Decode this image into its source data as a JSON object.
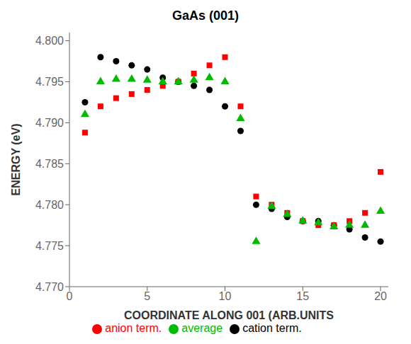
{
  "chart_data": {
    "type": "scatter",
    "title": "GaAs (001)",
    "x_label": "COORDINATE ALONG 001 (ARB.UNITS",
    "y_label": "ENERGY (eV)",
    "xlim": [
      0,
      20.5
    ],
    "ylim": [
      4.77,
      4.801
    ],
    "xticks": [
      0,
      5,
      10,
      15,
      20
    ],
    "yticks": [
      {
        "value": 4.77,
        "label": "4.770"
      },
      4.775,
      {
        "value": 4.78,
        "label": "4.780"
      },
      4.785,
      {
        "value": 4.79,
        "label": "4.790"
      },
      4.795,
      {
        "value": 4.8,
        "label": "4.800"
      }
    ],
    "grid": false,
    "legend": "bottom",
    "series": [
      {
        "name": "cation term.",
        "color": "#000000",
        "marker": "circle",
        "x": [
          1,
          2,
          3,
          4,
          5,
          6,
          7,
          8,
          9,
          10,
          11,
          12,
          13,
          14,
          15,
          16,
          17,
          18,
          19,
          20
        ],
        "values": [
          4.7925,
          4.798,
          4.7975,
          4.797,
          4.7965,
          4.7955,
          4.795,
          4.7945,
          4.794,
          4.792,
          4.789,
          4.78,
          4.7795,
          4.7785,
          4.778,
          4.778,
          4.7775,
          4.777,
          4.776,
          4.7755
        ]
      },
      {
        "name": "anion term.",
        "color": "#ff0000",
        "marker": "square",
        "x": [
          1,
          2,
          3,
          4,
          5,
          6,
          7,
          8,
          9,
          10,
          11,
          12,
          13,
          14,
          15,
          16,
          17,
          18,
          19,
          20
        ],
        "values": [
          4.7888,
          4.792,
          4.793,
          4.7935,
          4.794,
          4.7945,
          4.795,
          4.796,
          4.797,
          4.798,
          4.792,
          4.781,
          4.78,
          4.779,
          4.778,
          4.7775,
          4.7775,
          4.778,
          4.779,
          4.784
        ]
      },
      {
        "name": "average",
        "color": "#00bb00",
        "marker": "triangle",
        "x": [
          1,
          2,
          3,
          4,
          5,
          6,
          7,
          8,
          9,
          10,
          11,
          12,
          13,
          14,
          15,
          16,
          17,
          18,
          19,
          20
        ],
        "values": [
          4.791,
          4.795,
          4.7953,
          4.7953,
          4.7952,
          4.795,
          4.795,
          4.7952,
          4.7955,
          4.795,
          4.7905,
          4.7755,
          4.7798,
          4.7788,
          4.778,
          4.7778,
          4.7773,
          4.7775,
          4.7775,
          4.7792
        ]
      }
    ]
  }
}
